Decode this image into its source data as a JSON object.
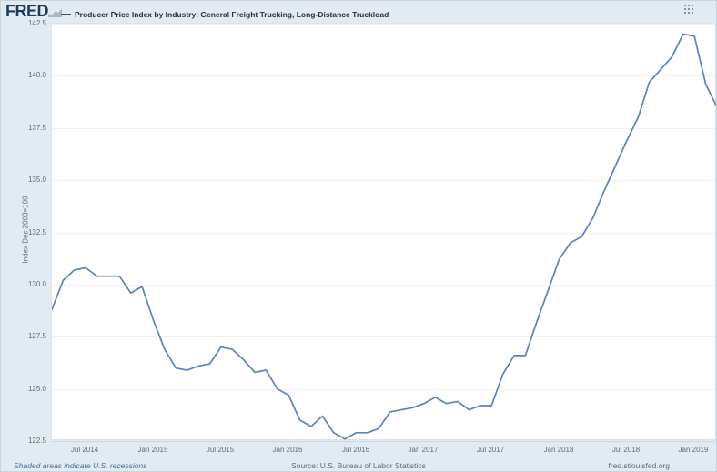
{
  "header": {
    "logo": "FRED",
    "series_title": "Producer Price Index by Industry: General Freight Trucking, Long-Distance Truckload"
  },
  "footer": {
    "left": "Shaded areas indicate U.S. recessions",
    "center": "Source: U.S. Bureau of Labor Statistics",
    "right": "fred.stlouisfed.org"
  },
  "colors": {
    "background": "#e3ebf2",
    "plot_background": "#ffffff",
    "line": "#5f82b6",
    "gridline": "#f0f0f0",
    "tick_text": "#5b6b7c"
  },
  "chart_data": {
    "type": "line",
    "title": "Producer Price Index by Industry: General Freight Trucking, Long-Distance Truckload",
    "xlabel": "",
    "ylabel": "Index Dec 2003=100",
    "ylim": [
      122.5,
      142.5
    ],
    "yticks": [
      122.5,
      125.0,
      127.5,
      130.0,
      132.5,
      135.0,
      137.5,
      140.0,
      142.5
    ],
    "grid": true,
    "legend_position": "top",
    "line_color": "#5f82b6",
    "x": [
      "2014-04",
      "2014-05",
      "2014-06",
      "2014-07",
      "2014-08",
      "2014-09",
      "2014-10",
      "2014-11",
      "2014-12",
      "2015-01",
      "2015-02",
      "2015-03",
      "2015-04",
      "2015-05",
      "2015-06",
      "2015-07",
      "2015-08",
      "2015-09",
      "2015-10",
      "2015-11",
      "2015-12",
      "2016-01",
      "2016-02",
      "2016-03",
      "2016-04",
      "2016-05",
      "2016-06",
      "2016-07",
      "2016-08",
      "2016-09",
      "2016-10",
      "2016-11",
      "2016-12",
      "2017-01",
      "2017-02",
      "2017-03",
      "2017-04",
      "2017-05",
      "2017-06",
      "2017-07",
      "2017-08",
      "2017-09",
      "2017-10",
      "2017-11",
      "2017-12",
      "2018-01",
      "2018-02",
      "2018-03",
      "2018-04",
      "2018-05",
      "2018-06",
      "2018-07",
      "2018-08",
      "2018-09",
      "2018-10",
      "2018-11",
      "2018-12",
      "2019-01",
      "2019-02",
      "2019-03"
    ],
    "values": [
      128.8,
      130.2,
      130.7,
      130.8,
      130.4,
      130.4,
      130.4,
      129.6,
      129.9,
      128.3,
      126.9,
      126.0,
      125.9,
      126.1,
      126.2,
      127.0,
      126.9,
      126.4,
      125.8,
      125.9,
      125.0,
      124.7,
      123.5,
      123.2,
      123.7,
      122.9,
      122.6,
      122.9,
      122.9,
      123.1,
      123.9,
      124.0,
      124.1,
      124.3,
      124.6,
      124.3,
      124.4,
      124.0,
      124.2,
      124.2,
      125.7,
      126.6,
      126.6,
      128.2,
      129.7,
      131.2,
      132.0,
      132.3,
      133.2,
      134.5,
      135.7,
      136.9,
      138.0,
      139.7,
      140.3,
      140.9,
      142.0,
      141.9,
      139.6,
      138.5
    ],
    "x_tick_labels": [
      {
        "label": "Jul 2014",
        "index": 3
      },
      {
        "label": "Jan 2015",
        "index": 9
      },
      {
        "label": "Jul 2015",
        "index": 15
      },
      {
        "label": "Jan 2016",
        "index": 21
      },
      {
        "label": "Jul 2016",
        "index": 27
      },
      {
        "label": "Jan 2017",
        "index": 33
      },
      {
        "label": "Jul 2017",
        "index": 39
      },
      {
        "label": "Jan 2018",
        "index": 45
      },
      {
        "label": "Jul 2018",
        "index": 51
      },
      {
        "label": "Jan 2019",
        "index": 57
      }
    ]
  }
}
